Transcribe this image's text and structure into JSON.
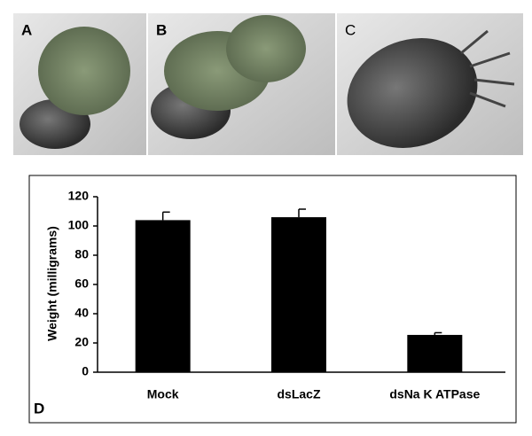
{
  "panel_labels": [
    "A",
    "B",
    "C"
  ],
  "chart_label": "D",
  "chart_data": {
    "type": "bar",
    "y_label": "Weight (milligrams)",
    "categories": [
      "Mock",
      "dsLacZ",
      "dsNa K ATPase"
    ],
    "values": [
      104,
      106,
      25.5
    ],
    "errors": [
      5.5,
      5.5,
      1.5
    ],
    "color": "#000000",
    "ylim": [
      0,
      120
    ],
    "yticks": [
      0,
      20,
      40,
      60,
      80,
      100,
      120
    ]
  }
}
